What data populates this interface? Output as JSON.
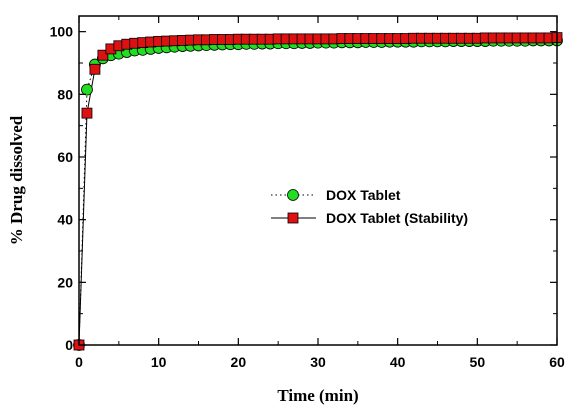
{
  "chart_data": {
    "type": "line",
    "title": "",
    "xlabel": "Time (min)",
    "ylabel": "% Drug dissolved",
    "xlim": [
      0,
      60
    ],
    "ylim": [
      0,
      105
    ],
    "xticks": [
      "0",
      "10",
      "20",
      "30",
      "40",
      "50",
      "60"
    ],
    "yticks": [
      "0",
      "20",
      "40",
      "60",
      "80",
      "100"
    ],
    "grid": false,
    "legend_position": "center-right",
    "x": [
      0,
      1,
      2,
      3,
      4,
      5,
      6,
      7,
      8,
      9,
      10,
      11,
      12,
      13,
      14,
      15,
      16,
      17,
      18,
      19,
      20,
      21,
      22,
      23,
      24,
      25,
      26,
      27,
      28,
      29,
      30,
      31,
      32,
      33,
      34,
      35,
      36,
      37,
      38,
      39,
      40,
      41,
      42,
      43,
      44,
      45,
      46,
      47,
      48,
      49,
      50,
      51,
      52,
      53,
      54,
      55,
      56,
      57,
      58,
      59,
      60
    ],
    "series": [
      {
        "name": "DOX Tablet",
        "marker": "circle",
        "line_style": "dotted",
        "color": "#22dd22",
        "values": [
          0,
          81.5,
          89.5,
          91.5,
          92.5,
          93,
          93.5,
          94,
          94.2,
          94.5,
          94.8,
          95,
          95.2,
          95.4,
          95.5,
          95.6,
          95.7,
          95.8,
          95.9,
          96,
          96,
          96.1,
          96.1,
          96.2,
          96.2,
          96.3,
          96.3,
          96.3,
          96.4,
          96.4,
          96.5,
          96.5,
          96.5,
          96.6,
          96.6,
          96.6,
          96.7,
          96.7,
          96.7,
          96.8,
          96.8,
          96.8,
          96.8,
          96.9,
          96.9,
          96.9,
          96.9,
          97,
          97,
          97,
          97,
          97,
          97.1,
          97.1,
          97.1,
          97.1,
          97.1,
          97.2,
          97.2,
          97.2,
          97.2
        ]
      },
      {
        "name": "DOX Tablet (Stability)",
        "marker": "square",
        "line_style": "solid",
        "color": "#dd1111",
        "values": [
          0,
          74,
          88,
          92.5,
          94.5,
          95.5,
          96,
          96.3,
          96.5,
          96.7,
          96.9,
          97,
          97.1,
          97.2,
          97.3,
          97.4,
          97.4,
          97.5,
          97.5,
          97.5,
          97.6,
          97.6,
          97.6,
          97.6,
          97.6,
          97.7,
          97.7,
          97.7,
          97.7,
          97.7,
          97.7,
          97.7,
          97.7,
          97.8,
          97.8,
          97.8,
          97.8,
          97.8,
          97.8,
          97.8,
          97.8,
          97.8,
          97.9,
          97.9,
          97.9,
          97.9,
          97.9,
          97.9,
          97.9,
          97.9,
          97.9,
          98,
          98,
          98,
          98,
          98,
          98,
          98,
          98,
          98,
          98.1
        ]
      }
    ]
  }
}
